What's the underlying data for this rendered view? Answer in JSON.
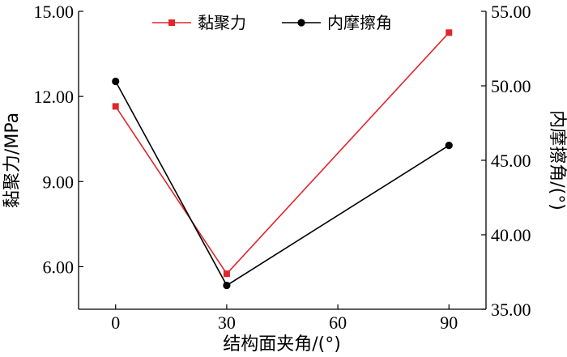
{
  "chart_data": {
    "type": "line",
    "x": [
      0,
      30,
      90
    ],
    "x_ticks": [
      "0",
      "30",
      "60",
      "90"
    ],
    "xlabel": "结构面夹角/(°)",
    "xlim": [
      -10,
      100
    ],
    "ylabel_left": "黏聚力/MPa",
    "ylim_left": [
      4.5,
      15.0
    ],
    "yticks_left": [
      "6.00",
      "9.00",
      "12.00",
      "15.00"
    ],
    "ylabel_right": "内摩擦角/(°)",
    "ylim_right": [
      35.0,
      55.0
    ],
    "yticks_right": [
      "35.00",
      "40.00",
      "45.00",
      "50.00",
      "55.00"
    ],
    "series": [
      {
        "name": "黏聚力",
        "axis": "left",
        "values": [
          11.65,
          5.75,
          14.25
        ],
        "color": "#e0262b",
        "marker": "square"
      },
      {
        "name": "内摩擦角",
        "axis": "right",
        "values": [
          50.3,
          36.6,
          46.0
        ],
        "color": "#000000",
        "marker": "circle"
      }
    ],
    "legend_position": "top-center",
    "grid": false
  }
}
